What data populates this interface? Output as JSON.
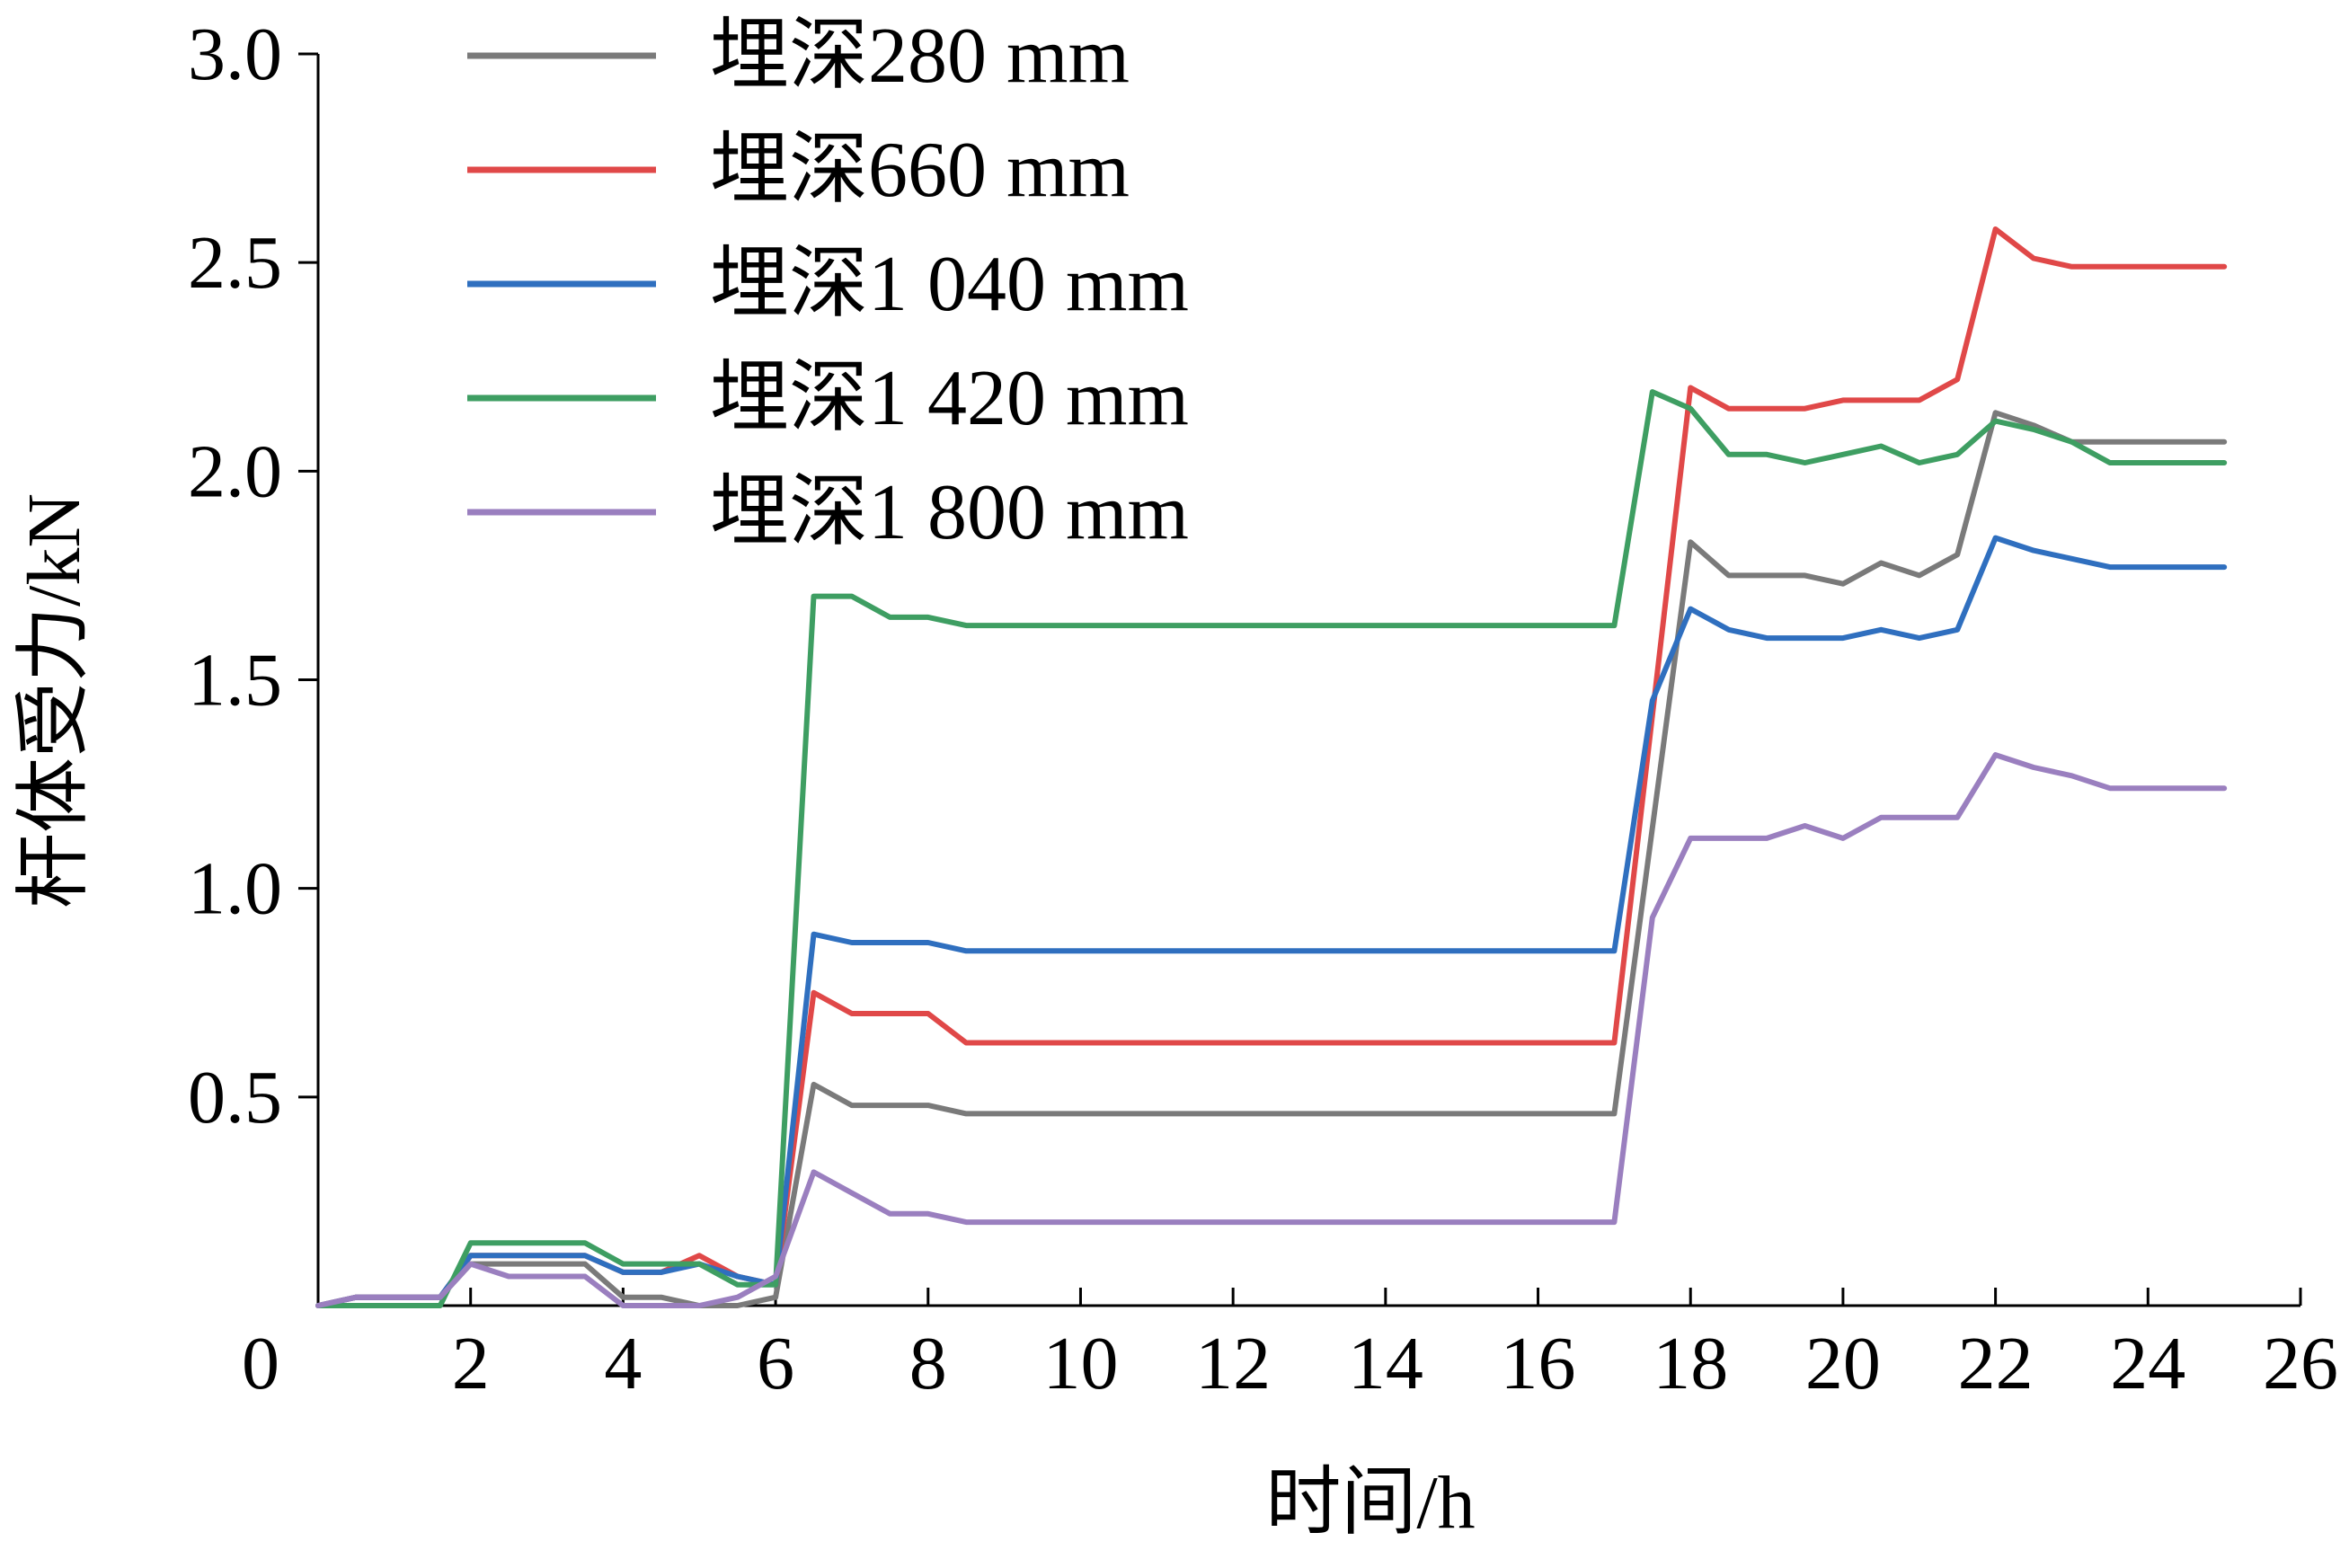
{
  "chart_data": {
    "type": "line",
    "title": "",
    "xlabel": "时间/h",
    "ylabel": "杆体受力/kN",
    "xlim": [
      0,
      26
    ],
    "ylim": [
      0,
      3.0
    ],
    "x_ticks": [
      "0",
      "2",
      "4",
      "6",
      "8",
      "10",
      "12",
      "14",
      "16",
      "18",
      "20",
      "22",
      "24",
      "26"
    ],
    "y_ticks": [
      "0.5",
      "1.0",
      "1.5",
      "2.0",
      "2.5",
      "3.0"
    ],
    "grid": false,
    "legend": "top-left",
    "series": [
      {
        "name": "埋深280 mm",
        "color": "#7a7a7a",
        "points": [
          [
            0,
            0
          ],
          [
            0.5,
            0.02
          ],
          [
            1,
            0.02
          ],
          [
            1.6,
            0.02
          ],
          [
            2,
            0.1
          ],
          [
            2.5,
            0.1
          ],
          [
            3,
            0.1
          ],
          [
            3.5,
            0.1
          ],
          [
            4,
            0.02
          ],
          [
            4.5,
            0.02
          ],
          [
            5,
            0
          ],
          [
            5.5,
            0
          ],
          [
            6,
            0.02
          ],
          [
            6.5,
            0.53
          ],
          [
            7,
            0.48
          ],
          [
            7.5,
            0.48
          ],
          [
            8,
            0.48
          ],
          [
            8.5,
            0.46
          ],
          [
            17,
            0.46
          ],
          [
            18,
            1.83
          ],
          [
            18.5,
            1.75
          ],
          [
            19,
            1.75
          ],
          [
            19.5,
            1.75
          ],
          [
            20,
            1.73
          ],
          [
            20.5,
            1.78
          ],
          [
            21,
            1.75
          ],
          [
            21.5,
            1.8
          ],
          [
            22,
            2.14
          ],
          [
            22.5,
            2.11
          ],
          [
            23,
            2.07
          ],
          [
            23.5,
            2.07
          ],
          [
            25,
            2.07
          ]
        ]
      },
      {
        "name": "埋深660 mm",
        "color": "#e04848",
        "points": [
          [
            0,
            0
          ],
          [
            0.5,
            0.02
          ],
          [
            1,
            0.02
          ],
          [
            1.6,
            0.02
          ],
          [
            2,
            0.12
          ],
          [
            2.5,
            0.12
          ],
          [
            3,
            0.12
          ],
          [
            3.5,
            0.12
          ],
          [
            4,
            0.08
          ],
          [
            4.5,
            0.08
          ],
          [
            5,
            0.12
          ],
          [
            5.5,
            0.07
          ],
          [
            6,
            0.05
          ],
          [
            6.5,
            0.75
          ],
          [
            7,
            0.7
          ],
          [
            7.5,
            0.7
          ],
          [
            8,
            0.7
          ],
          [
            8.5,
            0.63
          ],
          [
            17,
            0.63
          ],
          [
            18,
            2.2
          ],
          [
            18.5,
            2.15
          ],
          [
            19,
            2.15
          ],
          [
            19.5,
            2.15
          ],
          [
            20,
            2.17
          ],
          [
            20.5,
            2.17
          ],
          [
            21,
            2.17
          ],
          [
            21.5,
            2.22
          ],
          [
            22,
            2.58
          ],
          [
            22.5,
            2.51
          ],
          [
            23,
            2.49
          ],
          [
            23.5,
            2.49
          ],
          [
            25,
            2.49
          ]
        ]
      },
      {
        "name": "埋深1 040 mm",
        "color": "#2f6fbf",
        "points": [
          [
            0,
            0
          ],
          [
            0.5,
            0.02
          ],
          [
            1,
            0.02
          ],
          [
            1.6,
            0.02
          ],
          [
            2,
            0.12
          ],
          [
            2.5,
            0.12
          ],
          [
            3,
            0.12
          ],
          [
            3.5,
            0.12
          ],
          [
            4,
            0.08
          ],
          [
            4.5,
            0.08
          ],
          [
            5,
            0.1
          ],
          [
            5.5,
            0.07
          ],
          [
            6,
            0.05
          ],
          [
            6.5,
            0.89
          ],
          [
            7,
            0.87
          ],
          [
            7.5,
            0.87
          ],
          [
            8,
            0.87
          ],
          [
            8.5,
            0.85
          ],
          [
            17,
            0.85
          ],
          [
            17.5,
            1.45
          ],
          [
            18,
            1.67
          ],
          [
            18.5,
            1.62
          ],
          [
            19,
            1.6
          ],
          [
            19.5,
            1.6
          ],
          [
            20,
            1.6
          ],
          [
            20.5,
            1.62
          ],
          [
            21,
            1.6
          ],
          [
            21.5,
            1.62
          ],
          [
            22,
            1.84
          ],
          [
            22.5,
            1.81
          ],
          [
            23,
            1.79
          ],
          [
            23.5,
            1.77
          ],
          [
            25,
            1.77
          ]
        ]
      },
      {
        "name": "埋深1 420 mm",
        "color": "#3e9e62",
        "points": [
          [
            0,
            0
          ],
          [
            0.5,
            0
          ],
          [
            1,
            0
          ],
          [
            1.6,
            0
          ],
          [
            2,
            0.15
          ],
          [
            2.5,
            0.15
          ],
          [
            3,
            0.15
          ],
          [
            3.5,
            0.15
          ],
          [
            4,
            0.1
          ],
          [
            4.5,
            0.1
          ],
          [
            5,
            0.1
          ],
          [
            5.5,
            0.05
          ],
          [
            6,
            0.05
          ],
          [
            6.5,
            1.7
          ],
          [
            7,
            1.7
          ],
          [
            7.5,
            1.65
          ],
          [
            8,
            1.65
          ],
          [
            8.5,
            1.63
          ],
          [
            17,
            1.63
          ],
          [
            17.5,
            2.19
          ],
          [
            18,
            2.15
          ],
          [
            18.5,
            2.04
          ],
          [
            19,
            2.04
          ],
          [
            19.5,
            2.02
          ],
          [
            20,
            2.04
          ],
          [
            20.5,
            2.06
          ],
          [
            21,
            2.02
          ],
          [
            21.5,
            2.04
          ],
          [
            22,
            2.12
          ],
          [
            22.5,
            2.1
          ],
          [
            23,
            2.07
          ],
          [
            23.5,
            2.02
          ],
          [
            25,
            2.02
          ]
        ]
      },
      {
        "name": "埋深1 800 mm",
        "color": "#9a7fbf",
        "points": [
          [
            0,
            0
          ],
          [
            0.5,
            0.02
          ],
          [
            1,
            0.02
          ],
          [
            1.6,
            0.02
          ],
          [
            2,
            0.1
          ],
          [
            2.5,
            0.07
          ],
          [
            3,
            0.07
          ],
          [
            3.5,
            0.07
          ],
          [
            4,
            0
          ],
          [
            4.5,
            0
          ],
          [
            5,
            0
          ],
          [
            5.5,
            0.02
          ],
          [
            6,
            0.07
          ],
          [
            6.5,
            0.32
          ],
          [
            7,
            0.27
          ],
          [
            7.5,
            0.22
          ],
          [
            8,
            0.22
          ],
          [
            8.5,
            0.2
          ],
          [
            17,
            0.2
          ],
          [
            17.5,
            0.93
          ],
          [
            18,
            1.12
          ],
          [
            18.5,
            1.12
          ],
          [
            19,
            1.12
          ],
          [
            19.5,
            1.15
          ],
          [
            20,
            1.12
          ],
          [
            20.5,
            1.17
          ],
          [
            21,
            1.17
          ],
          [
            21.5,
            1.17
          ],
          [
            22,
            1.32
          ],
          [
            22.5,
            1.29
          ],
          [
            23,
            1.27
          ],
          [
            23.5,
            1.24
          ],
          [
            25,
            1.24
          ]
        ]
      }
    ]
  }
}
